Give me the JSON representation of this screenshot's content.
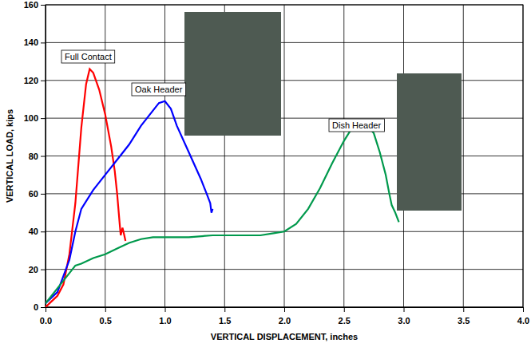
{
  "chart_data": {
    "type": "line",
    "x_label": "VERTICAL DISPLACEMENT, inches",
    "y_label": "VERTICAL LOAD, kips",
    "xlim": [
      0,
      4
    ],
    "xticks": [
      {
        "value": 0,
        "label": "0.0"
      },
      {
        "value": 0.5,
        "label": "0.5"
      },
      {
        "value": 1,
        "label": "1.0"
      },
      {
        "value": 1.5,
        "label": "1.5"
      },
      {
        "value": 2,
        "label": "2.0"
      },
      {
        "value": 2.5,
        "label": "2.5"
      },
      {
        "value": 3,
        "label": "3.0"
      },
      {
        "value": 3.5,
        "label": "3.5"
      },
      {
        "value": 4,
        "label": "4.0"
      }
    ],
    "ylim": [
      0,
      160
    ],
    "yticks": [
      0,
      20,
      40,
      60,
      80,
      100,
      120,
      140,
      160
    ],
    "grid": true,
    "series": [
      {
        "name": "Full Contact",
        "color": "#ff0000",
        "x": [
          0,
          0.05,
          0.1,
          0.15,
          0.2,
          0.25,
          0.3,
          0.34,
          0.37,
          0.4,
          0.45,
          0.5,
          0.55,
          0.58,
          0.6,
          0.62,
          0.63,
          0.645,
          0.66,
          0.67
        ],
        "values": [
          0,
          3,
          6,
          12,
          28,
          55,
          95,
          118,
          126,
          124,
          115,
          102,
          85,
          72,
          60,
          45,
          38,
          42,
          38,
          35
        ]
      },
      {
        "name": "Oak Header",
        "color": "#0000ff",
        "x": [
          0,
          0.1,
          0.2,
          0.25,
          0.3,
          0.4,
          0.5,
          0.6,
          0.7,
          0.8,
          0.9,
          0.95,
          1.0,
          1.05,
          1.1,
          1.2,
          1.3,
          1.35,
          1.38,
          1.39,
          1.4
        ],
        "values": [
          2,
          8,
          25,
          40,
          52,
          62,
          70,
          78,
          86,
          96,
          104,
          108,
          109,
          105,
          96,
          82,
          68,
          60,
          55,
          50,
          52
        ]
      },
      {
        "name": "Dish Header",
        "color": "#00994c",
        "x": [
          0,
          0.1,
          0.2,
          0.25,
          0.3,
          0.4,
          0.5,
          0.6,
          0.7,
          0.8,
          0.9,
          1.0,
          1.2,
          1.4,
          1.6,
          1.8,
          1.9,
          2.0,
          2.1,
          2.2,
          2.3,
          2.4,
          2.5,
          2.55,
          2.6,
          2.65,
          2.7,
          2.75,
          2.8,
          2.85,
          2.88,
          2.9,
          2.93,
          2.96
        ],
        "values": [
          2,
          10,
          18,
          22,
          23,
          26,
          28,
          31,
          34,
          36,
          37,
          37,
          37,
          38,
          38,
          38,
          39,
          40,
          44,
          52,
          63,
          76,
          88,
          93,
          96,
          97,
          96,
          92,
          82,
          70,
          60,
          54,
          50,
          45
        ]
      }
    ]
  }
}
